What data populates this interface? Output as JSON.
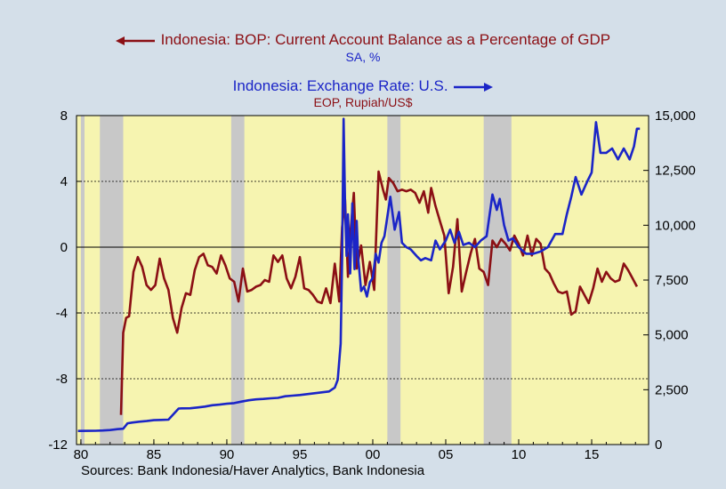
{
  "legend": {
    "ca_title": "Indonesia: BOP: Current Account Balance as a Percentage of GDP",
    "ca_sub": "SA, %",
    "fx_title": "Indonesia: Exchange Rate: U.S.",
    "fx_sub": "EOP, Rupiah/US$"
  },
  "source": "Sources:  Bank Indonesia/Haver Analytics, Bank Indonesia",
  "colors": {
    "plot_bg": "#f6f4b0",
    "page_bg": "#d4dfe9",
    "recession": "#c8c8c8",
    "current_account": "#8b0f14",
    "exchange_rate": "#1b25c7"
  },
  "chart_data": {
    "type": "line",
    "x_range": [
      1979.7,
      2018.9
    ],
    "x_ticks": [
      {
        "x": 1980,
        "label": "80"
      },
      {
        "x": 1985,
        "label": "85"
      },
      {
        "x": 1990,
        "label": "90"
      },
      {
        "x": 1995,
        "label": "95"
      },
      {
        "x": 2000,
        "label": "00"
      },
      {
        "x": 2005,
        "label": "05"
      },
      {
        "x": 2010,
        "label": "10"
      },
      {
        "x": 2015,
        "label": "15"
      }
    ],
    "y_left": {
      "range": [
        -12,
        8
      ],
      "ticks": [
        8,
        4,
        0,
        -4,
        -8,
        -12
      ],
      "labels": [
        "8",
        "4",
        "0",
        "-4",
        "-8",
        "-12"
      ]
    },
    "y_right": {
      "range": [
        0,
        15000
      ],
      "ticks": [
        15000,
        12500,
        10000,
        7500,
        5000,
        2500,
        0
      ],
      "labels": [
        "15,000",
        "12,500",
        "10,000",
        "7,500",
        "5,000",
        "2,500",
        "0"
      ]
    },
    "gridlines_left": [
      4,
      -4,
      -8
    ],
    "zero_line": 0,
    "recessions": [
      [
        1980.0,
        1980.25
      ],
      [
        1981.3,
        1982.9
      ],
      [
        1990.3,
        1991.2
      ],
      [
        2001.0,
        2001.9
      ],
      [
        2007.6,
        2009.5
      ]
    ],
    "series": [
      {
        "name": "Current Account Balance (% of GDP, left)",
        "axis": "left",
        "x": [
          1982.75,
          1982.9,
          1983.1,
          1983.3,
          1983.6,
          1983.9,
          1984.2,
          1984.5,
          1984.8,
          1985.1,
          1985.4,
          1985.7,
          1986.0,
          1986.3,
          1986.6,
          1986.9,
          1987.2,
          1987.5,
          1987.8,
          1988.1,
          1988.4,
          1988.7,
          1989.0,
          1989.3,
          1989.6,
          1989.9,
          1990.2,
          1990.5,
          1990.8,
          1991.1,
          1991.4,
          1991.7,
          1992.0,
          1992.3,
          1992.6,
          1992.9,
          1993.2,
          1993.5,
          1993.8,
          1994.1,
          1994.4,
          1994.7,
          1995.0,
          1995.3,
          1995.6,
          1995.9,
          1996.2,
          1996.5,
          1996.8,
          1997.1,
          1997.4,
          1997.7,
          1997.9,
          1998.1,
          1998.3,
          1998.5,
          1998.7,
          1998.9,
          1999.2,
          1999.5,
          1999.8,
          2000.1,
          2000.4,
          2000.7,
          2000.9,
          2001.1,
          2001.4,
          2001.7,
          2002.0,
          2002.3,
          2002.6,
          2002.9,
          2003.2,
          2003.5,
          2003.8,
          2004.0,
          2004.3,
          2004.6,
          2004.9,
          2005.2,
          2005.5,
          2005.8,
          2006.1,
          2006.4,
          2006.7,
          2007.0,
          2007.3,
          2007.6,
          2007.9,
          2008.2,
          2008.5,
          2008.8,
          2009.1,
          2009.4,
          2009.7,
          2010.0,
          2010.3,
          2010.6,
          2010.9,
          2011.2,
          2011.5,
          2011.8,
          2012.1,
          2012.4,
          2012.7,
          2013.0,
          2013.3,
          2013.6,
          2013.9,
          2014.2,
          2014.5,
          2014.8,
          2015.1,
          2015.4,
          2015.7,
          2016.0,
          2016.3,
          2016.6,
          2016.9,
          2017.2,
          2017.5,
          2017.8,
          2018.1
        ],
        "values": [
          -10.2,
          -5.2,
          -4.3,
          -4.2,
          -1.5,
          -0.6,
          -1.2,
          -2.3,
          -2.6,
          -2.3,
          -0.7,
          -1.9,
          -2.6,
          -4.3,
          -5.2,
          -3.7,
          -2.8,
          -2.9,
          -1.4,
          -0.6,
          -0.4,
          -1.1,
          -1.2,
          -1.6,
          -0.5,
          -1.1,
          -1.9,
          -2.1,
          -3.3,
          -1.3,
          -2.7,
          -2.6,
          -2.4,
          -2.3,
          -2.0,
          -2.1,
          -0.5,
          -0.9,
          -0.5,
          -1.9,
          -2.5,
          -1.8,
          -0.6,
          -2.5,
          -2.6,
          -2.9,
          -3.3,
          -3.4,
          -2.5,
          -3.4,
          -1.0,
          -3.3,
          1.2,
          2.9,
          -1.8,
          1.2,
          3.3,
          -1.3,
          0.1,
          -2.3,
          -0.9,
          -2.6,
          4.6,
          3.5,
          2.9,
          4.2,
          3.9,
          3.4,
          3.5,
          3.4,
          3.5,
          3.3,
          2.7,
          3.4,
          2.1,
          3.6,
          2.5,
          1.6,
          0.7,
          -2.8,
          -1.2,
          1.7,
          -2.7,
          -1.5,
          -0.4,
          0.5,
          -1.3,
          -1.5,
          -2.3,
          0.4,
          0.0,
          0.5,
          0.2,
          -0.2,
          0.7,
          0.2,
          -0.5,
          0.7,
          -0.5,
          0.5,
          0.2,
          -1.3,
          -1.6,
          -2.2,
          -2.7,
          -2.8,
          -2.7,
          -4.1,
          -3.9,
          -2.4,
          -2.9,
          -3.4,
          -2.5,
          -1.3,
          -2.1,
          -1.5,
          -1.9,
          -2.1,
          -2.0,
          -1.0,
          -1.4,
          -1.9,
          -2.4
        ]
      },
      {
        "name": "Exchange Rate (Rupiah/US$, right)",
        "axis": "right",
        "x": [
          1979.8,
          1980.5,
          1981.0,
          1981.5,
          1982.0,
          1982.5,
          1982.9,
          1983.2,
          1983.5,
          1984.0,
          1984.5,
          1985.0,
          1985.5,
          1986.0,
          1986.7,
          1986.9,
          1987.5,
          1988.0,
          1988.5,
          1989.0,
          1989.5,
          1990.0,
          1990.5,
          1991.0,
          1991.5,
          1992.0,
          1992.5,
          1993.0,
          1993.5,
          1994.0,
          1994.5,
          1995.0,
          1995.5,
          1996.0,
          1996.5,
          1997.0,
          1997.4,
          1997.6,
          1997.8,
          1997.9,
          1998.0,
          1998.1,
          1998.2,
          1998.3,
          1998.45,
          1998.6,
          1998.75,
          1998.9,
          1999.0,
          1999.2,
          1999.4,
          1999.6,
          1999.8,
          2000.0,
          2000.2,
          2000.4,
          2000.6,
          2000.8,
          2001.0,
          2001.2,
          2001.5,
          2001.8,
          2002.0,
          2002.3,
          2002.6,
          2003.0,
          2003.3,
          2003.6,
          2004.0,
          2004.3,
          2004.6,
          2005.0,
          2005.3,
          2005.6,
          2005.9,
          2006.2,
          2006.6,
          2007.0,
          2007.4,
          2007.8,
          2008.2,
          2008.5,
          2008.7,
          2009.0,
          2009.3,
          2009.6,
          2010.0,
          2010.5,
          2011.0,
          2011.5,
          2012.0,
          2012.5,
          2013.0,
          2013.3,
          2013.6,
          2013.9,
          2014.3,
          2014.7,
          2015.0,
          2015.3,
          2015.6,
          2016.0,
          2016.4,
          2016.8,
          2017.2,
          2017.6,
          2017.9,
          2018.1,
          2018.3
        ],
        "values": [
          620,
          623,
          630,
          640,
          660,
          700,
          720,
          970,
          1000,
          1040,
          1070,
          1110,
          1125,
          1135,
          1640,
          1650,
          1655,
          1690,
          1730,
          1790,
          1820,
          1860,
          1890,
          1960,
          2020,
          2060,
          2080,
          2110,
          2130,
          2200,
          2230,
          2260,
          2300,
          2340,
          2380,
          2420,
          2600,
          2950,
          4600,
          8400,
          14850,
          11000,
          8600,
          10500,
          7800,
          11000,
          8000,
          10200,
          8500,
          7000,
          7200,
          6750,
          7400,
          7600,
          8700,
          8300,
          9200,
          9500,
          10400,
          11300,
          9800,
          10600,
          9200,
          9000,
          8900,
          8600,
          8400,
          8500,
          8400,
          9300,
          8900,
          9300,
          9800,
          9200,
          9700,
          9100,
          9200,
          9000,
          9300,
          9500,
          11400,
          10700,
          11200,
          10000,
          9300,
          9400,
          9000,
          8700,
          8700,
          8800,
          9000,
          9600,
          9600,
          10500,
          11300,
          12200,
          11400,
          12000,
          12400,
          14700,
          13300,
          13300,
          13500,
          13000,
          13500,
          13000,
          13600,
          14400,
          14400
        ]
      }
    ]
  }
}
